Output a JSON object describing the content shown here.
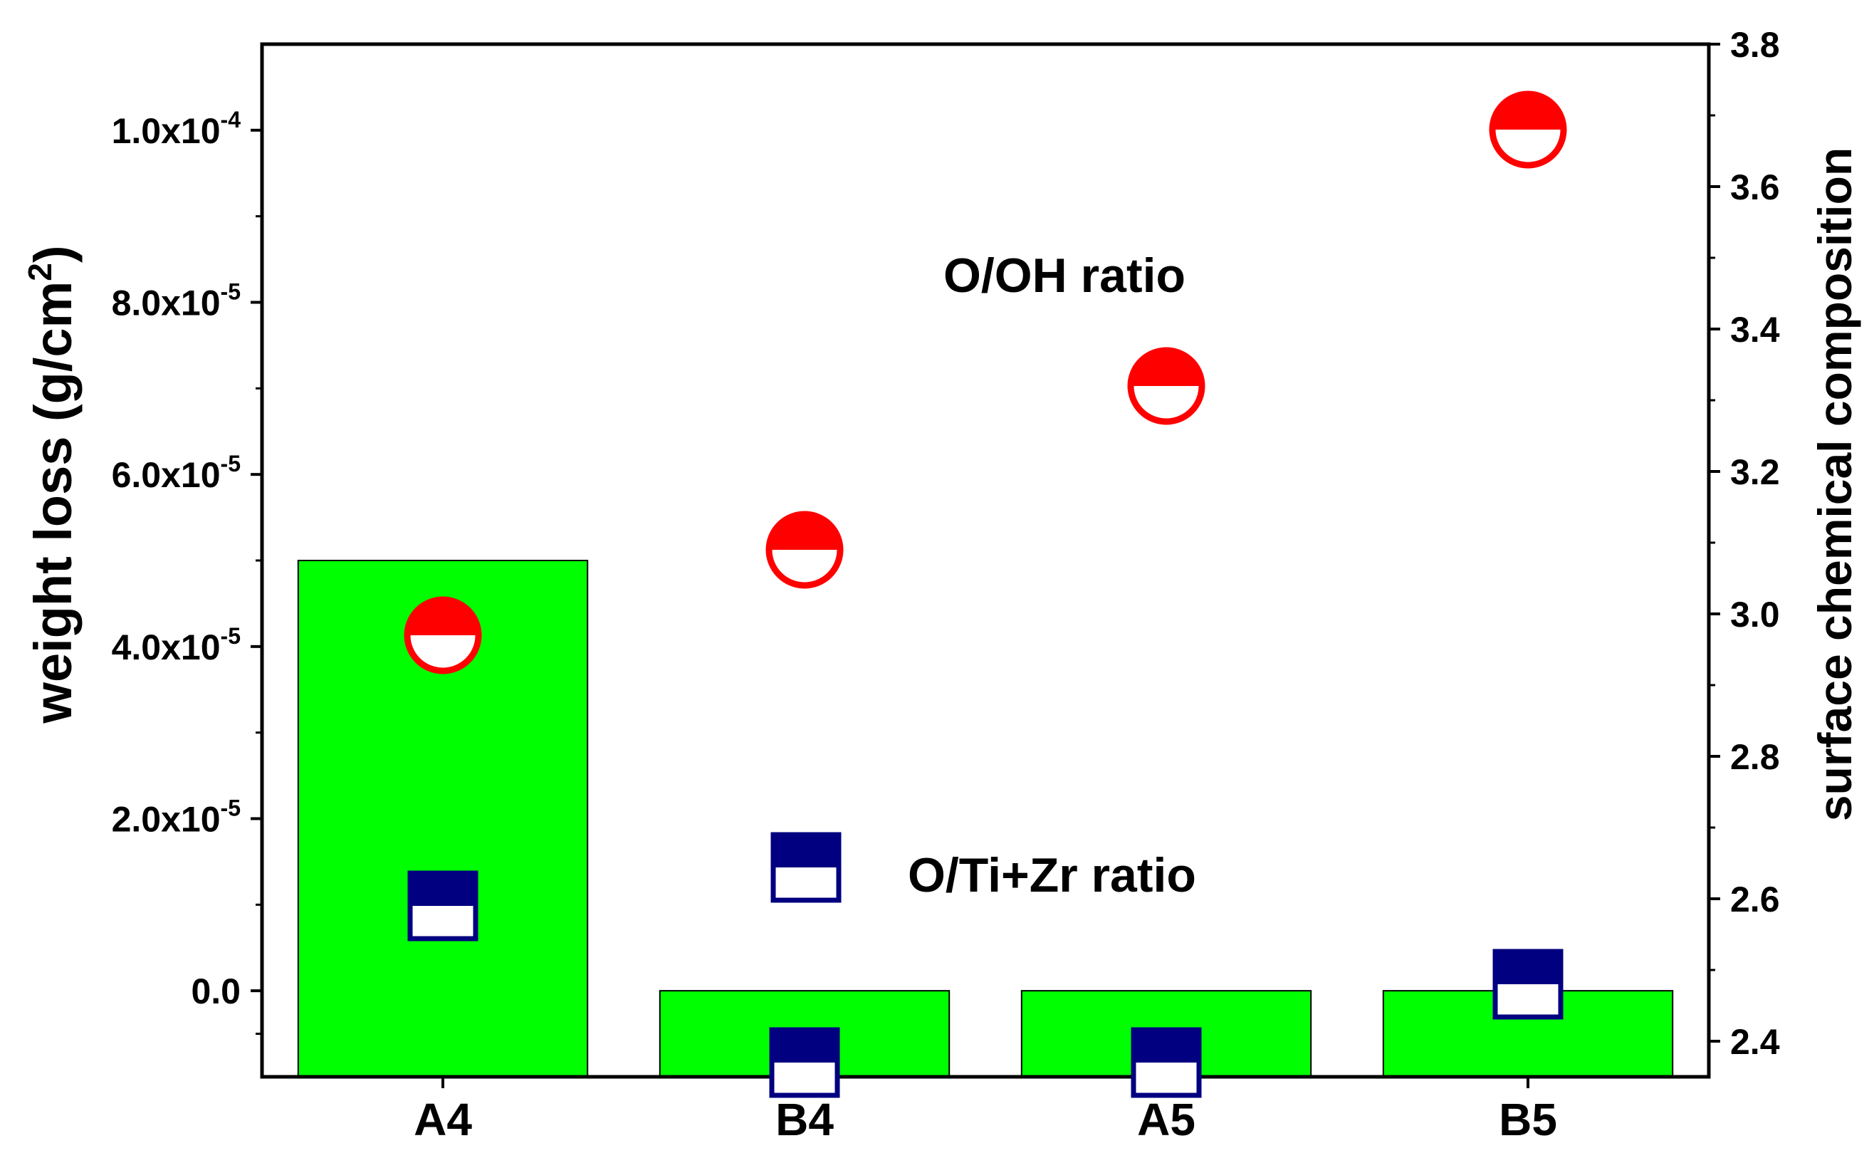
{
  "chart_data": {
    "type": "bar",
    "categories": [
      "A4",
      "B4",
      "A5",
      "B5"
    ],
    "y_left": {
      "label": "weight loss (g/cm2)",
      "label_main": "weight loss (g/cm",
      "label_sup": "2",
      "label_tail": ")",
      "range": [
        -1e-05,
        0.00011
      ],
      "ticks": [
        {
          "value": 0,
          "mantissa": "0.0",
          "exp": ""
        },
        {
          "value": 2e-05,
          "mantissa": "2.0x10",
          "exp": "-5"
        },
        {
          "value": 4e-05,
          "mantissa": "4.0x10",
          "exp": "-5"
        },
        {
          "value": 6e-05,
          "mantissa": "6.0x10",
          "exp": "-5"
        },
        {
          "value": 8e-05,
          "mantissa": "8.0x10",
          "exp": "-5"
        },
        {
          "value": 0.0001,
          "mantissa": "1.0x10",
          "exp": "-4"
        }
      ]
    },
    "y_right": {
      "label": "surface chemical composition",
      "range": [
        2.35,
        3.8
      ],
      "ticks": [
        {
          "value": 2.4,
          "label": "2.4"
        },
        {
          "value": 2.6,
          "label": "2.6"
        },
        {
          "value": 2.8,
          "label": "2.8"
        },
        {
          "value": 3.0,
          "label": "3.0"
        },
        {
          "value": 3.2,
          "label": "3.2"
        },
        {
          "value": 3.4,
          "label": "3.4"
        },
        {
          "value": 3.6,
          "label": "3.6"
        },
        {
          "value": 3.8,
          "label": "3.8"
        }
      ]
    },
    "bars": {
      "name": "weight loss",
      "axis": "left",
      "values": [
        5e-05,
        0,
        0,
        0
      ],
      "color": "#00ff00"
    },
    "series": [
      {
        "name": "O/OH ratio",
        "axis": "right",
        "marker": "half-filled-circle",
        "color": "#ff0000",
        "values": [
          2.97,
          3.09,
          3.32,
          3.68
        ]
      },
      {
        "name": "O/Ti+Zr ratio",
        "axis": "right",
        "marker": "half-filled-square",
        "color": "#000080",
        "values": [
          2.59,
          2.37,
          2.37,
          2.48
        ]
      }
    ],
    "annotations": [
      {
        "text": "O/OH ratio",
        "color": "#ff0000"
      },
      {
        "text": "O/Ti+Zr ratio",
        "color": "#0000ff"
      }
    ],
    "legend_markers": [
      {
        "series": "O/Ti+Zr ratio",
        "marker": "half-filled-square",
        "color": "#000080"
      }
    ]
  }
}
